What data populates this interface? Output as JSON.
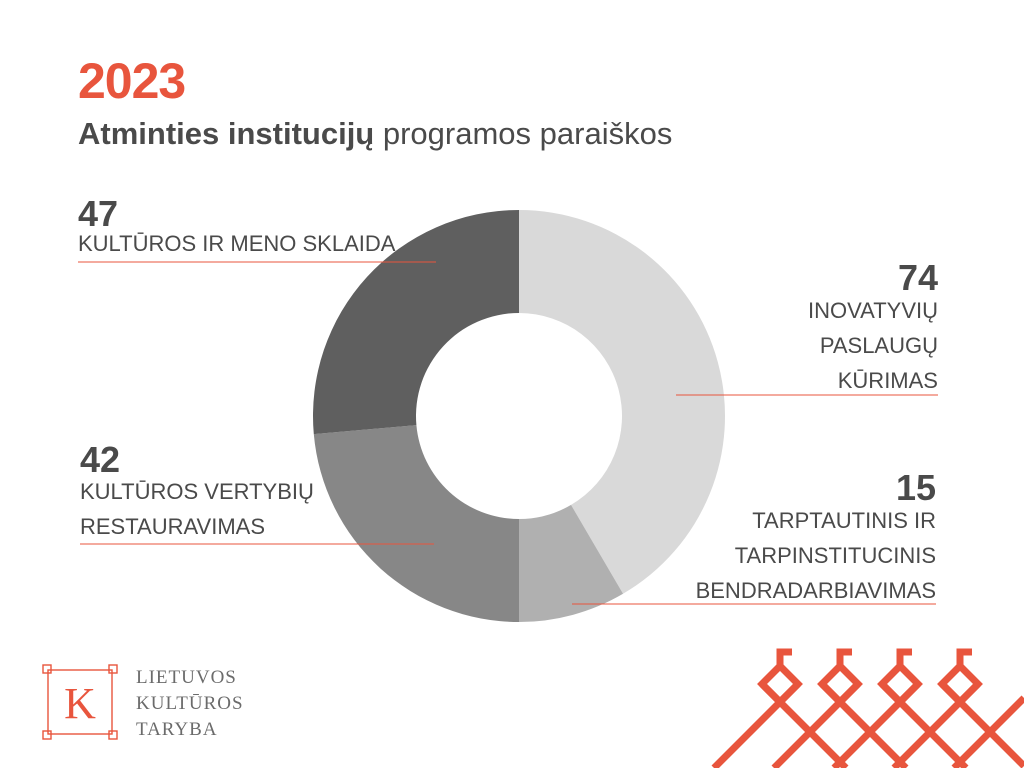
{
  "header": {
    "year": "2023",
    "subtitle_bold": "Atminties institucijų",
    "subtitle_light": " programos paraiškos"
  },
  "chart_data": {
    "type": "pie",
    "donut": true,
    "categories": [
      "INOVATYVIŲ PASLAUGŲ KŪRIMAS",
      "TARPTAUTINIS IR TARPINSTITUCINIS BENDRADARBIAVIMAS",
      "KULTŪROS VERTYBIŲ RESTAURAVIMAS",
      "KULTŪROS IR MENO SKLAIDA"
    ],
    "values": [
      74,
      15,
      42,
      47
    ],
    "colors": [
      "#d9d9d9",
      "#b0b0b0",
      "#878787",
      "#5f5f5f"
    ],
    "leader_color": "#e8553d"
  },
  "labels": {
    "inovatyviu": {
      "value": "74",
      "lines": [
        "INOVATYVIŲ",
        "PASLAUGŲ",
        "KŪRIMAS"
      ]
    },
    "tarptautinis": {
      "value": "15",
      "lines": [
        "TARPTAUTINIS IR",
        "TARPINSTITUCINIS",
        "BENDRADARBIAVIMAS"
      ]
    },
    "vertybiu": {
      "value": "42",
      "lines": [
        "KULTŪROS VERTYBIŲ",
        "RESTAURAVIMAS"
      ]
    },
    "sklaida": {
      "value": "47",
      "lines": [
        "KULTŪROS IR MENO SKLAIDA"
      ]
    }
  },
  "footer": {
    "logo_letter": "K",
    "logo_lines": [
      "LIETUVOS",
      "KULTŪROS",
      "TARYBA"
    ],
    "accent": "#e8553d"
  }
}
